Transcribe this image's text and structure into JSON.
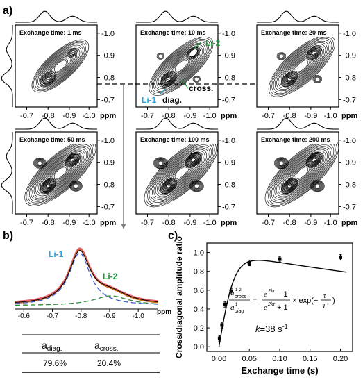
{
  "panel_labels": {
    "a": "a)",
    "b": "b)",
    "c": "c)"
  },
  "exchange_prefix": "Exchange time: ",
  "unit_ppm": "ppm",
  "annotations": {
    "li1": "Li-1",
    "li2": "Li-2",
    "diag": "diag.",
    "cross": "cross."
  },
  "colors": {
    "li1": "#29a3d9",
    "li2": "#1a9e3c",
    "orange": "#c8651b",
    "pink": "#e8606e",
    "blue_fit": "#3b5bd6",
    "green_fit": "#2f8a3a"
  },
  "panel_a": {
    "x_ticks": [
      "-0.7",
      "-0.8",
      "-0.9",
      "-1.0"
    ],
    "y_ticks": [
      "-1.0",
      "-0.9",
      "-0.8",
      "-0.7"
    ],
    "panels": [
      {
        "time": "1 ms"
      },
      {
        "time": "10 ms"
      },
      {
        "time": "20 ms"
      },
      {
        "time": "50 ms"
      },
      {
        "time": "100 ms"
      },
      {
        "time": "200 ms"
      }
    ]
  },
  "panel_b": {
    "x_ticks": [
      "-0.6",
      "-0.7",
      "-0.8",
      "-0.9",
      "-1.0"
    ],
    "table": {
      "headers": [
        "a",
        "a"
      ],
      "header_subs": [
        "diag.",
        "cross."
      ],
      "values": [
        "79.6%",
        "20.4%"
      ]
    }
  },
  "chart_data": {
    "type": "scatter",
    "title": "",
    "xlabel": "Exchange time (s)",
    "ylabel": "Cross/diagonal amplitude ratio",
    "xlim": [
      -0.02,
      0.22
    ],
    "ylim": [
      -0.05,
      1.1
    ],
    "x_ticks": [
      "0.00",
      "0.05",
      "0.10",
      "0.15",
      "0.20"
    ],
    "y_ticks": [
      "0.0",
      "0.2",
      "0.4",
      "0.6",
      "0.8",
      "1.0"
    ],
    "series": [
      {
        "x": [
          0.001,
          0.005,
          0.01,
          0.02,
          0.05,
          0.1,
          0.2
        ],
        "y": [
          0.09,
          0.23,
          0.45,
          0.59,
          0.89,
          0.93,
          0.95
        ],
        "err": [
          0.03,
          0.03,
          0.03,
          0.03,
          0.03,
          0.03,
          0.03
        ]
      }
    ],
    "fit": {
      "label": "k=38 s",
      "superscript": "-1"
    }
  }
}
